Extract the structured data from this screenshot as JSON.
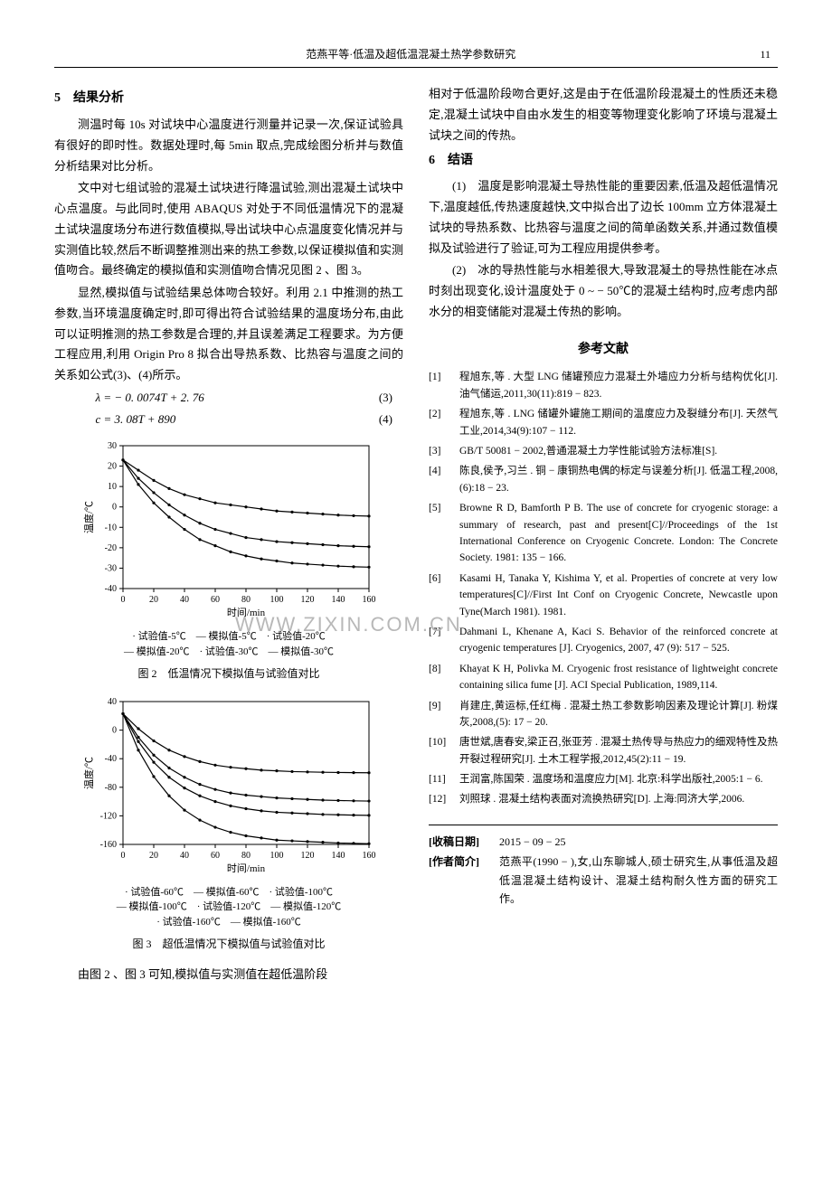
{
  "header": {
    "center": "范燕平等·低温及超低温混凝土热学参数研究",
    "page": "11"
  },
  "watermark": "WWW.ZIXIN.COM.CN",
  "left": {
    "sec5_title": "5　结果分析",
    "p1": "测温时每 10s 对试块中心温度进行测量并记录一次,保证试验具有很好的即时性。数据处理时,每 5min 取点,完成绘图分析并与数值分析结果对比分析。",
    "p2": "文中对七组试验的混凝土试块进行降温试验,测出混凝土试块中心点温度。与此同时,使用 ABAQUS 对处于不同低温情况下的混凝土试块温度场分布进行数值模拟,导出试块中心点温度变化情况并与实测值比较,然后不断调整推测出来的热工参数,以保证模拟值和实测值吻合。最终确定的模拟值和实测值吻合情况见图 2 、图 3。",
    "p3": "显然,模拟值与试验结果总体吻合较好。利用 2.1 中推测的热工参数,当环境温度确定时,即可得出符合试验结果的温度场分布,由此可以证明推测的热工参数是合理的,并且误差满足工程要求。为方便工程应用,利用 Origin Pro 8 拟合出导热系数、比热容与温度之间的关系如公式(3)、(4)所示。",
    "eq3": "λ = − 0. 0074T + 2. 76",
    "eq3n": "(3)",
    "eq4": "c = 3. 08T + 890",
    "eq4n": "(4)",
    "p4": "由图 2 、图 3 可知,模拟值与实测值在超低温阶段"
  },
  "right": {
    "p1": "相对于低温阶段吻合更好,这是由于在低温阶段混凝土的性质还未稳定,混凝土试块中自由水发生的相变等物理变化影响了环境与混凝土试块之间的传热。",
    "sec6_title": "6　结语",
    "p2": "(1)　温度是影响混凝土导热性能的重要因素,低温及超低温情况下,温度越低,传热速度越快,文中拟合出了边长 100mm 立方体混凝土试块的导热系数、比热容与温度之间的简单函数关系,并通过数值模拟及试验进行了验证,可为工程应用提供参考。",
    "p3": "(2)　冰的导热性能与水相差很大,导致混凝土的导热性能在冰点时刻出现变化,设计温度处于 0 ~ − 50℃的混凝土结构时,应考虑内部水分的相变储能对混凝土传热的影响。",
    "ref_title": "参考文献"
  },
  "refs": [
    {
      "n": "[1]",
      "t": "程旭东,等 . 大型 LNG 储罐预应力混凝土外墙应力分析与结构优化[J]. 油气储运,2011,30(11):819 − 823."
    },
    {
      "n": "[2]",
      "t": "程旭东,等 . LNG 储罐外罐施工期间的温度应力及裂缝分布[J]. 天然气工业,2014,34(9):107 − 112."
    },
    {
      "n": "[3]",
      "t": "GB/T 50081 − 2002,普通混凝土力学性能试验方法标准[S]."
    },
    {
      "n": "[4]",
      "t": "陈良,侯予,习兰 . 铜 − 康铜热电偶的标定与误差分析[J]. 低温工程,2008,(6):18 − 23."
    },
    {
      "n": "[5]",
      "t": "Browne R D, Bamforth P B. The use of concrete for cryogenic storage: a summary of research, past and present[C]//Proceedings of the 1st International Conference on Cryogenic Concrete. London: The Concrete Society. 1981: 135 − 166."
    },
    {
      "n": "[6]",
      "t": "Kasami H, Tanaka Y, Kishima Y, et al. Properties of concrete at very low temperatures[C]//First Int Conf on Cryogenic Concrete, Newcastle upon Tyne(March 1981). 1981."
    },
    {
      "n": "[7]",
      "t": "Dahmani L, Khenane A, Kaci S. Behavior of the reinforced concrete at cryogenic temperatures [J]. Cryogenics, 2007, 47 (9): 517 − 525."
    },
    {
      "n": "[8]",
      "t": "Khayat K H, Polivka M. Cryogenic frost resistance of lightweight concrete containing silica fume [J]. ACI Special Publication, 1989,114."
    },
    {
      "n": "[9]",
      "t": "肖建庄,黄运标,任红梅 . 混凝土热工参数影响因素及理论计算[J]. 粉煤灰,2008,(5): 17 − 20."
    },
    {
      "n": "[10]",
      "t": "唐世斌,唐春安,梁正召,张亚芳 . 混凝土热传导与热应力的细观特性及热开裂过程研究[J]. 土木工程学报,2012,45(2):11 − 19."
    },
    {
      "n": "[11]",
      "t": "王润富,陈国荣 . 温度场和温度应力[M]. 北京:科学出版社,2005:1 − 6."
    },
    {
      "n": "[12]",
      "t": "刘照球 . 混凝土结构表面对流换热研究[D]. 上海:同济大学,2006."
    }
  ],
  "footer": {
    "date_label": "[收稿日期]",
    "date": "2015 − 09 − 25",
    "author_label": "[作者简介]",
    "author": "范燕平(1990 − ),女,山东聊城人,硕士研究生,从事低温及超低温混凝土结构设计、混凝土结构耐久性方面的研究工作。"
  },
  "fig2": {
    "caption": "图 2　低温情况下模拟值与试验值对比",
    "xlabel": "时间/min",
    "ylabel": "温度/℃",
    "xlim": [
      0,
      160
    ],
    "xtick_step": 20,
    "ylim": [
      -40,
      30
    ],
    "ytick_step": 10,
    "grid_color": "#d0d0d0",
    "border_color": "#000000",
    "bg": "#ffffff",
    "series": [
      {
        "name": "试验值-5℃",
        "type": "scatter",
        "color": "#000000",
        "marker": "dot",
        "x": [
          0,
          10,
          20,
          30,
          40,
          50,
          60,
          70,
          80,
          90,
          100,
          110,
          120,
          130,
          140,
          150,
          160
        ],
        "y": [
          23,
          18,
          13,
          9,
          6,
          4,
          2,
          1,
          0,
          -1,
          -2,
          -2.5,
          -3,
          -3.5,
          -4,
          -4.3,
          -4.5
        ]
      },
      {
        "name": "模拟值-5℃",
        "type": "line",
        "color": "#000000",
        "x": [
          0,
          10,
          20,
          30,
          40,
          50,
          60,
          70,
          80,
          90,
          100,
          110,
          120,
          130,
          140,
          150,
          160
        ],
        "y": [
          23,
          18,
          13,
          9,
          6,
          4,
          2,
          1,
          0,
          -1,
          -2,
          -2.5,
          -3,
          -3.5,
          -4,
          -4.3,
          -4.5
        ]
      },
      {
        "name": "试验值-20℃",
        "type": "scatter",
        "color": "#000000",
        "marker": "dot",
        "x": [
          0,
          10,
          20,
          30,
          40,
          50,
          60,
          70,
          80,
          90,
          100,
          110,
          120,
          130,
          140,
          150,
          160
        ],
        "y": [
          23,
          14,
          7,
          1,
          -4,
          -8,
          -11,
          -13,
          -15,
          -16,
          -17,
          -17.5,
          -18,
          -18.5,
          -19,
          -19.3,
          -19.5
        ]
      },
      {
        "name": "模拟值-20℃",
        "type": "line",
        "color": "#000000",
        "x": [
          0,
          10,
          20,
          30,
          40,
          50,
          60,
          70,
          80,
          90,
          100,
          110,
          120,
          130,
          140,
          150,
          160
        ],
        "y": [
          23,
          14,
          7,
          1,
          -4,
          -8,
          -11,
          -13,
          -15,
          -16,
          -17,
          -17.5,
          -18,
          -18.5,
          -19,
          -19.3,
          -19.5
        ]
      },
      {
        "name": "试验值-30℃",
        "type": "scatter",
        "color": "#000000",
        "marker": "dot",
        "x": [
          0,
          10,
          20,
          30,
          40,
          50,
          60,
          70,
          80,
          90,
          100,
          110,
          120,
          130,
          140,
          150,
          160
        ],
        "y": [
          23,
          11,
          2,
          -5,
          -11,
          -16,
          -19,
          -22,
          -24,
          -25.5,
          -26.5,
          -27.5,
          -28,
          -28.5,
          -29,
          -29.3,
          -29.5
        ]
      },
      {
        "name": "模拟值-30℃",
        "type": "line",
        "color": "#000000",
        "x": [
          0,
          10,
          20,
          30,
          40,
          50,
          60,
          70,
          80,
          90,
          100,
          110,
          120,
          130,
          140,
          150,
          160
        ],
        "y": [
          23,
          11,
          2,
          -5,
          -11,
          -16,
          -19,
          -22,
          -24,
          -25.5,
          -26.5,
          -27.5,
          -28,
          -28.5,
          -29,
          -29.3,
          -29.5
        ]
      }
    ],
    "legend_lines": [
      "·  试验值-5℃　— 模拟值-5℃　·  试验值-20℃",
      "— 模拟值-20℃　·  试验值-30℃　— 模拟值-30℃"
    ]
  },
  "fig3": {
    "caption": "图 3　超低温情况下模拟值与试验值对比",
    "xlabel": "时间/min",
    "ylabel": "温度/℃",
    "xlim": [
      0,
      160
    ],
    "xtick_step": 20,
    "ylim": [
      -160,
      40
    ],
    "ytick_step": 40,
    "grid_color": "#d0d0d0",
    "border_color": "#000000",
    "bg": "#ffffff",
    "series": [
      {
        "name": "试验值-60℃",
        "type": "scatter",
        "color": "#000000",
        "marker": "dot",
        "x": [
          0,
          10,
          20,
          30,
          40,
          50,
          60,
          70,
          80,
          90,
          100,
          110,
          120,
          130,
          140,
          150,
          160
        ],
        "y": [
          23,
          2,
          -15,
          -28,
          -37,
          -44,
          -49,
          -52,
          -54,
          -56,
          -57,
          -58,
          -58.5,
          -59,
          -59.3,
          -59.5,
          -59.7
        ]
      },
      {
        "name": "模拟值-60℃",
        "type": "line",
        "color": "#000000",
        "x": [
          0,
          10,
          20,
          30,
          40,
          50,
          60,
          70,
          80,
          90,
          100,
          110,
          120,
          130,
          140,
          150,
          160
        ],
        "y": [
          23,
          2,
          -15,
          -28,
          -37,
          -44,
          -49,
          -52,
          -54,
          -56,
          -57,
          -58,
          -58.5,
          -59,
          -59.3,
          -59.5,
          -59.7
        ]
      },
      {
        "name": "试验值-100℃",
        "type": "scatter",
        "color": "#000000",
        "marker": "dot",
        "x": [
          0,
          10,
          20,
          30,
          40,
          50,
          60,
          70,
          80,
          90,
          100,
          110,
          120,
          130,
          140,
          150,
          160
        ],
        "y": [
          23,
          -10,
          -35,
          -53,
          -66,
          -76,
          -83,
          -88,
          -91,
          -93,
          -95,
          -96,
          -97,
          -98,
          -98.5,
          -99,
          -99.3
        ]
      },
      {
        "name": "模拟值-100℃",
        "type": "line",
        "color": "#000000",
        "x": [
          0,
          10,
          20,
          30,
          40,
          50,
          60,
          70,
          80,
          90,
          100,
          110,
          120,
          130,
          140,
          150,
          160
        ],
        "y": [
          23,
          -10,
          -35,
          -53,
          -66,
          -76,
          -83,
          -88,
          -91,
          -93,
          -95,
          -96,
          -97,
          -98,
          -98.5,
          -99,
          -99.3
        ]
      },
      {
        "name": "试验值-120℃",
        "type": "scatter",
        "color": "#000000",
        "marker": "dot",
        "x": [
          0,
          10,
          20,
          30,
          40,
          50,
          60,
          70,
          80,
          90,
          100,
          110,
          120,
          130,
          140,
          150,
          160
        ],
        "y": [
          23,
          -16,
          -45,
          -66,
          -81,
          -92,
          -100,
          -106,
          -110,
          -113,
          -115,
          -116,
          -117,
          -118,
          -118.5,
          -119,
          -119.3
        ]
      },
      {
        "name": "模拟值-120℃",
        "type": "line",
        "color": "#000000",
        "x": [
          0,
          10,
          20,
          30,
          40,
          50,
          60,
          70,
          80,
          90,
          100,
          110,
          120,
          130,
          140,
          150,
          160
        ],
        "y": [
          23,
          -16,
          -45,
          -66,
          -81,
          -92,
          -100,
          -106,
          -110,
          -113,
          -115,
          -116,
          -117,
          -118,
          -118.5,
          -119,
          -119.3
        ]
      },
      {
        "name": "试验值-160℃",
        "type": "scatter",
        "color": "#000000",
        "marker": "dot",
        "x": [
          0,
          10,
          20,
          30,
          40,
          50,
          60,
          70,
          80,
          90,
          100,
          110,
          120,
          130,
          140,
          150,
          160
        ],
        "y": [
          23,
          -28,
          -65,
          -92,
          -112,
          -126,
          -136,
          -143,
          -148,
          -151,
          -154,
          -155,
          -156,
          -157,
          -158,
          -158.5,
          -159
        ]
      },
      {
        "name": "模拟值-160℃",
        "type": "line",
        "color": "#000000",
        "x": [
          0,
          10,
          20,
          30,
          40,
          50,
          60,
          70,
          80,
          90,
          100,
          110,
          120,
          130,
          140,
          150,
          160
        ],
        "y": [
          23,
          -28,
          -65,
          -92,
          -112,
          -126,
          -136,
          -143,
          -148,
          -151,
          -154,
          -155,
          -156,
          -157,
          -158,
          -158.5,
          -159
        ]
      }
    ],
    "legend_lines": [
      "·  试验值-60℃　— 模拟值-60℃　·  试验值-100℃",
      "— 模拟值-100℃　·  试验值-120℃　— 模拟值-120℃",
      "·  试验值-160℃　— 模拟值-160℃"
    ]
  }
}
